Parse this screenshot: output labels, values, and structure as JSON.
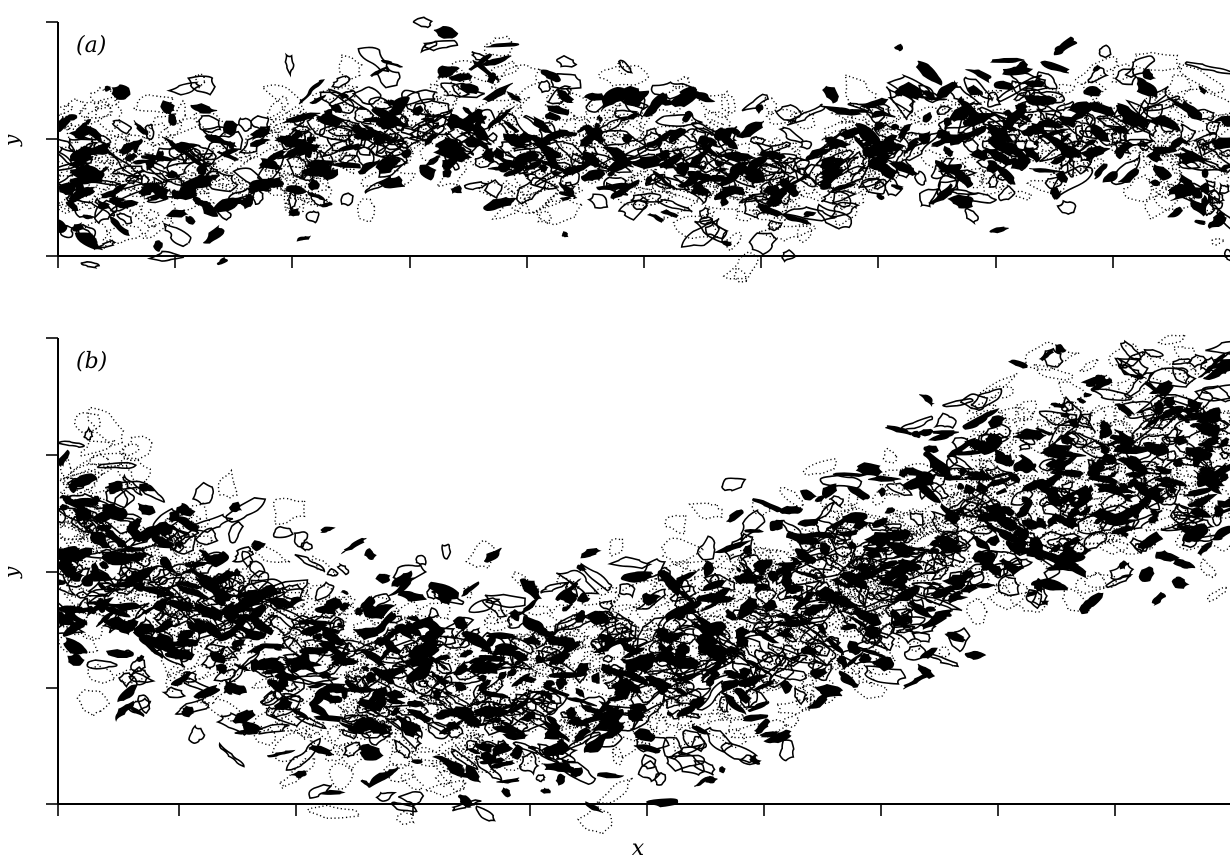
{
  "figure": {
    "panels": [
      {
        "label": "(a)",
        "y_axis_label": "y",
        "kind": "vorticity-contours"
      },
      {
        "label": "(b)",
        "y_axis_label": "y",
        "kind": "vorticity-contours"
      }
    ],
    "x_axis_label": "x",
    "colors": {
      "ink": "#000000",
      "background": "#ffffff"
    }
  }
}
